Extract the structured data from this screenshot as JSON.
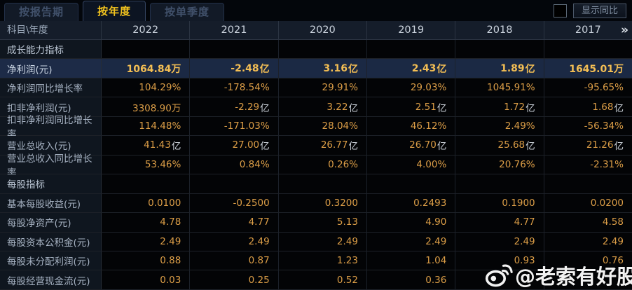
{
  "tabs": [
    {
      "label": "按报告期",
      "active": false
    },
    {
      "label": "按年度",
      "active": true
    },
    {
      "label": "按单季度",
      "active": false
    }
  ],
  "controls": {
    "compare_checkbox_checked": false,
    "compare_label": "显示同比"
  },
  "table": {
    "corner_label": "科目\\年度",
    "years": [
      "2022",
      "2021",
      "2020",
      "2019",
      "2018",
      "2017"
    ],
    "more_icon": "»",
    "rows": [
      {
        "type": "section",
        "label": "成长能力指标",
        "values": [
          "",
          "",
          "",
          "",
          "",
          ""
        ]
      },
      {
        "type": "data",
        "highlight": true,
        "label": "净利润(元)",
        "values": [
          "1064.84万",
          "-2.48亿",
          "3.16亿",
          "2.43亿",
          "1.89亿",
          "1645.01万"
        ]
      },
      {
        "type": "data",
        "label": "净利润同比增长率",
        "values": [
          "104.29%",
          "-178.54%",
          "29.91%",
          "29.03%",
          "1045.91%",
          "-95.65%"
        ]
      },
      {
        "type": "data",
        "label": "扣非净利润(元)",
        "values": [
          "3308.90万",
          "-2.29亿",
          "3.22亿",
          "2.51亿",
          "1.72亿",
          "1.68亿"
        ]
      },
      {
        "type": "data",
        "label": "扣非净利润同比增长率",
        "values": [
          "114.48%",
          "-171.03%",
          "28.04%",
          "46.12%",
          "2.49%",
          "-56.34%"
        ]
      },
      {
        "type": "data",
        "label": "营业总收入(元)",
        "values": [
          "41.43亿",
          "27.00亿",
          "26.77亿",
          "26.70亿",
          "25.68亿",
          "21.26亿"
        ]
      },
      {
        "type": "data",
        "label": "营业总收入同比增长率",
        "values": [
          "53.46%",
          "0.84%",
          "0.26%",
          "4.00%",
          "20.76%",
          "-2.31%"
        ]
      },
      {
        "type": "section",
        "label": "每股指标",
        "values": [
          "",
          "",
          "",
          "",
          "",
          ""
        ]
      },
      {
        "type": "data",
        "label": "基本每股收益(元)",
        "values": [
          "0.0100",
          "-0.2500",
          "0.3200",
          "0.2493",
          "0.1900",
          "0.0200"
        ]
      },
      {
        "type": "data",
        "label": "每股净资产(元)",
        "values": [
          "4.78",
          "4.77",
          "5.13",
          "4.90",
          "4.77",
          "4.58"
        ]
      },
      {
        "type": "data",
        "label": "每股资本公积金(元)",
        "values": [
          "2.49",
          "2.49",
          "2.49",
          "2.49",
          "2.49",
          "2.49"
        ]
      },
      {
        "type": "data",
        "label": "每股未分配利润(元)",
        "values": [
          "0.88",
          "0.87",
          "1.23",
          "1.04",
          "0.93",
          "0.76"
        ]
      },
      {
        "type": "data",
        "label": "每股经营现金流(元)",
        "values": [
          "0.03",
          "0.25",
          "0.52",
          "0.36",
          "",
          ""
        ]
      }
    ]
  },
  "watermark": {
    "handle": "@老索有好股"
  },
  "colors": {
    "value_gold": "#dc9e47",
    "highlight_row_bg": "#1b2944",
    "highlight_value_gold": "#f3be54",
    "active_tab_text": "#f2c31e",
    "label_text": "#a6b2c2",
    "header_bg": "#151d2a"
  }
}
